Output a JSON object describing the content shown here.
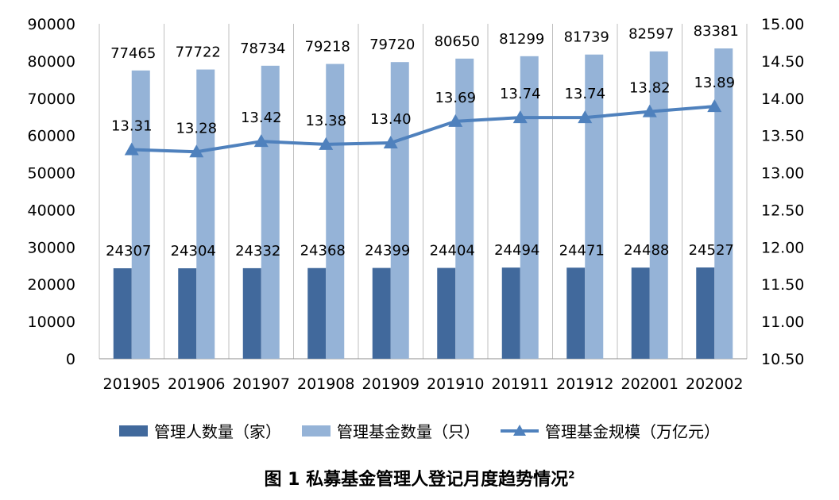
{
  "chart_data": {
    "type": "bar",
    "categories": [
      "201905",
      "201906",
      "201907",
      "201908",
      "201909",
      "201910",
      "201911",
      "201912",
      "202001",
      "202002"
    ],
    "series": [
      {
        "name": "管理人数量（家）",
        "type": "bar",
        "axis": "left",
        "color": "#41699c",
        "values": [
          24307,
          24304,
          24332,
          24368,
          24399,
          24404,
          24494,
          24471,
          24488,
          24527
        ]
      },
      {
        "name": "管理基金数量（只）",
        "type": "bar",
        "axis": "left",
        "color": "#95b3d7",
        "values": [
          77465,
          77722,
          78734,
          79218,
          79720,
          80650,
          81299,
          81739,
          82597,
          83381
        ]
      },
      {
        "name": "管理基金规模（万亿元）",
        "type": "line",
        "axis": "right",
        "color": "#4f81bd",
        "marker": "triangle",
        "values": [
          13.31,
          13.28,
          13.42,
          13.38,
          13.4,
          13.69,
          13.74,
          13.74,
          13.82,
          13.89
        ]
      }
    ],
    "ylim": [
      0,
      90000
    ],
    "y_ticks": [
      "0",
      "10000",
      "20000",
      "30000",
      "40000",
      "50000",
      "60000",
      "70000",
      "80000",
      "90000"
    ],
    "y2lim": [
      10.5,
      15.0
    ],
    "y2_ticks": [
      "10.50",
      "11.00",
      "11.50",
      "12.00",
      "12.50",
      "13.00",
      "13.50",
      "14.00",
      "14.50",
      "15.00"
    ],
    "grid": "vertical",
    "legend": "bottom"
  },
  "caption": {
    "text": "图 1  私募基金管理人登记月度趋势情况",
    "footnote": "2"
  }
}
